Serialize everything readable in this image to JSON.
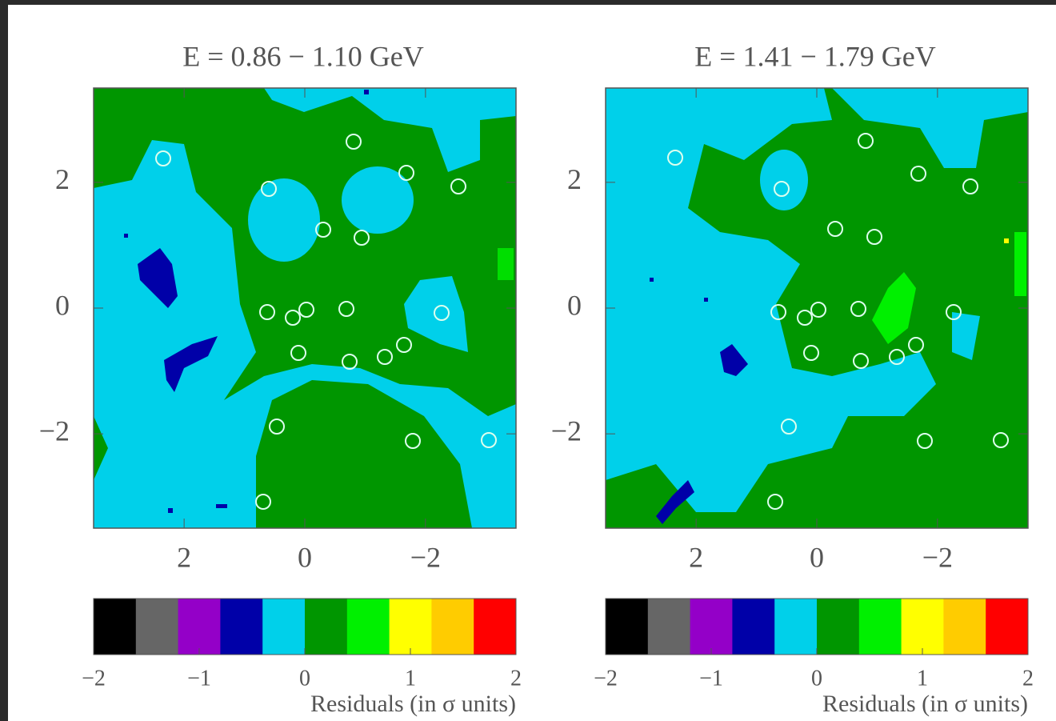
{
  "chart_data": [
    {
      "type": "heatmap",
      "title": "E = 0.86 − 1.10 GeV",
      "xlim": [
        3.5,
        -3.5
      ],
      "ylim": [
        -3.5,
        3.5
      ],
      "xticks": [
        2,
        0,
        {
          "value": -2,
          "label": "−2"
        }
      ],
      "yticks": [
        {
          "value": -2,
          "label": "−2"
        },
        0,
        2
      ],
      "colorbar": {
        "label": "Residuals (in σ units)",
        "lim": [
          -2,
          2
        ],
        "ticks": [
          {
            "value": -2,
            "label": "−2"
          },
          {
            "value": -1,
            "label": "−1"
          },
          0,
          1,
          2
        ],
        "colors": [
          "#000000",
          "#666666",
          "#9400c8",
          "#0000a8",
          "#00d0ea",
          "#009600",
          "#00f000",
          "#ffff00",
          "#ffcc00",
          "#ff0000"
        ]
      }
    },
    {
      "type": "heatmap",
      "title": "E = 1.41 − 1.79 GeV",
      "xlim": [
        3.5,
        -3.5
      ],
      "ylim": [
        -3.5,
        3.5
      ],
      "xticks": [
        2,
        0,
        {
          "value": -2,
          "label": "−2"
        }
      ],
      "yticks": [
        {
          "value": -2,
          "label": "−2"
        },
        0,
        2
      ],
      "colorbar": {
        "label": "Residuals (in σ units)",
        "lim": [
          -2,
          2
        ],
        "ticks": [
          {
            "value": -2,
            "label": "−2"
          },
          {
            "value": -1,
            "label": "−1"
          },
          0,
          1,
          2
        ],
        "colors": [
          "#000000",
          "#666666",
          "#9400c8",
          "#0000a8",
          "#00d0ea",
          "#009600",
          "#00f000",
          "#ffff00",
          "#ffcc00",
          "#ff0000"
        ]
      }
    }
  ]
}
